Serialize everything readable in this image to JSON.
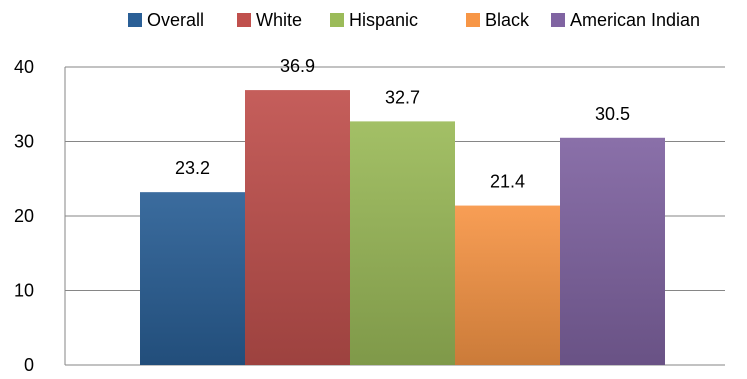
{
  "chart_data": {
    "type": "bar",
    "title": "",
    "xlabel": "",
    "ylabel": "",
    "ylim": [
      0,
      40
    ],
    "yticks": [
      0,
      10,
      20,
      30,
      40
    ],
    "grid": true,
    "legend_position": "top",
    "series": [
      {
        "name": "Overall",
        "value": 23.2,
        "label": "23.2",
        "color": "#2a5f96"
      },
      {
        "name": "White",
        "value": 36.9,
        "label": "36.9",
        "color": "#c0504d"
      },
      {
        "name": "Hispanic",
        "value": 32.7,
        "label": "32.7",
        "color": "#9bbb59"
      },
      {
        "name": "Black",
        "value": 21.4,
        "label": "21.4",
        "color": "#f79646"
      },
      {
        "name": "American Indian",
        "value": 30.5,
        "label": "30.5",
        "color": "#8064a2"
      }
    ]
  }
}
